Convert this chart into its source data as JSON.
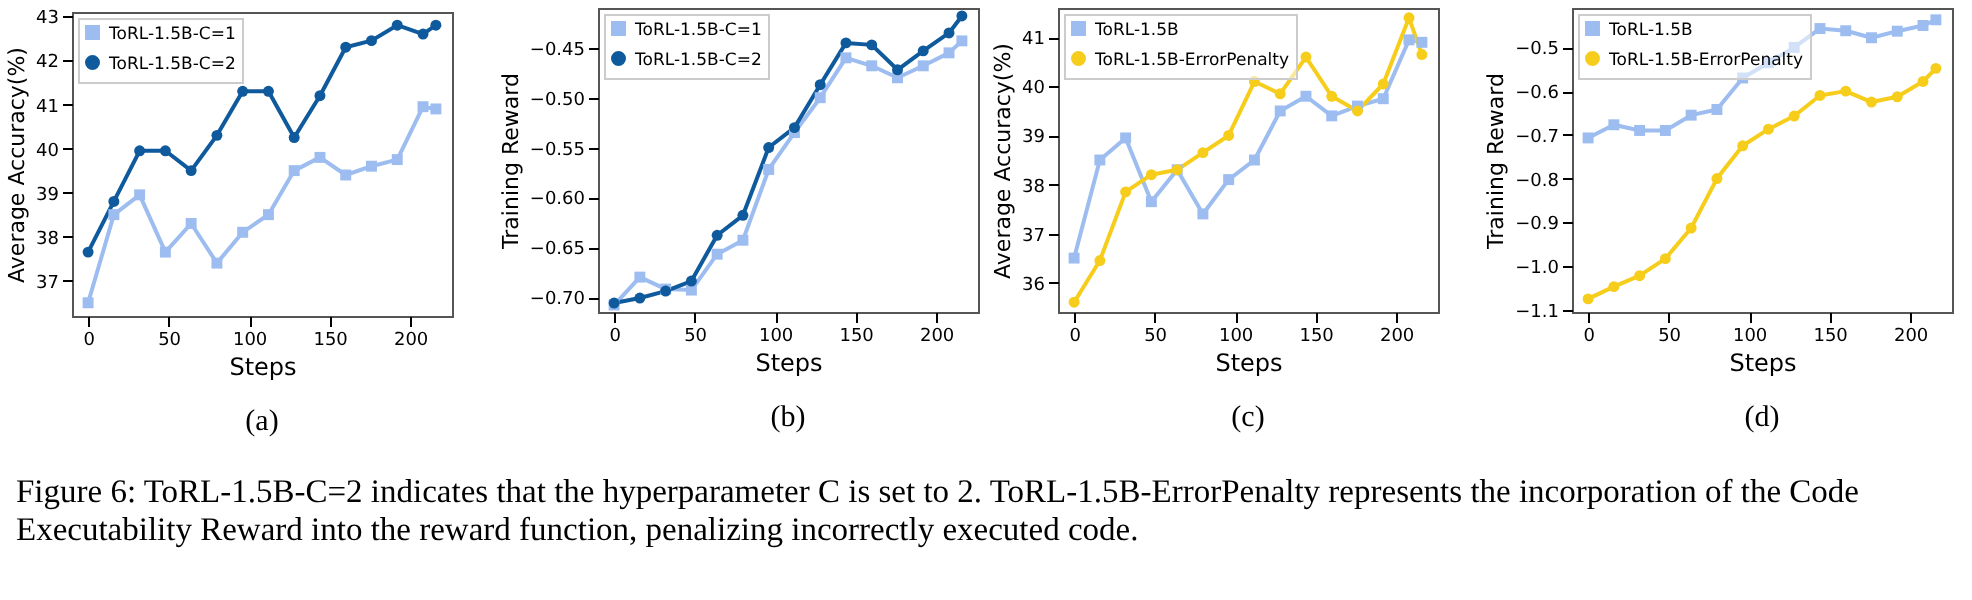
{
  "chart_data": [
    {
      "type": "line",
      "xlabel": "Steps",
      "ylabel": "Average Accuracy(%)",
      "annotations": [
        "(a)",
        "Figure 6: ToRL-1.5B-C=2 indicates that the hyperparameter C is set to 2. ToRL-1.5B-ErrorPenalty represents the incorporation of the Code Executability Reward into the reward function, penalizing incorrectly executed code."
      ],
      "x": [
        0,
        16,
        32,
        48,
        64,
        80,
        96,
        112,
        128,
        144,
        160,
        176,
        192,
        208,
        216
      ],
      "xlim": [
        -10,
        226
      ],
      "xticks": [
        0,
        50,
        100,
        150,
        200
      ],
      "ylim": [
        36.2,
        43.1
      ],
      "yticks": [
        37,
        38,
        39,
        40,
        41,
        42,
        43
      ],
      "grid": false,
      "legend": "top left",
      "line_style": "solid",
      "series": [
        {
          "name": "ToRL-1.5B-C=1",
          "color": "#9dbdf0",
          "marker": "square",
          "values": [
            36.5,
            38.5,
            38.95,
            37.65,
            38.3,
            37.4,
            38.1,
            38.5,
            39.5,
            39.8,
            39.4,
            39.6,
            39.75,
            40.95,
            40.9
          ]
        },
        {
          "name": "ToRL-1.5B-C=2",
          "color": "#0f5a9c",
          "marker": "circle",
          "values": [
            37.65,
            38.8,
            39.95,
            39.95,
            39.5,
            40.3,
            41.3,
            41.3,
            40.25,
            41.2,
            42.3,
            42.45,
            42.8,
            42.6,
            42.8
          ]
        }
      ]
    },
    {
      "type": "line",
      "xlabel": "Steps",
      "ylabel": "Training Reward",
      "annotations": [
        "(b)"
      ],
      "x": [
        0,
        16,
        32,
        48,
        64,
        80,
        96,
        112,
        128,
        144,
        160,
        176,
        192,
        208,
        216
      ],
      "xlim": [
        -10,
        226
      ],
      "xticks": [
        0,
        50,
        100,
        150,
        200
      ],
      "ylim": [
        -0.715,
        -0.41
      ],
      "yticks": [
        {
          "value": -0.7,
          "label": "−0.70"
        },
        {
          "value": -0.65,
          "label": "−0.65"
        },
        {
          "value": -0.6,
          "label": "−0.60"
        },
        {
          "value": -0.55,
          "label": "−0.55"
        },
        {
          "value": -0.5,
          "label": "−0.50"
        },
        {
          "value": -0.45,
          "label": "−0.45"
        }
      ],
      "grid": false,
      "legend": "top left",
      "line_style": "solid",
      "series": [
        {
          "name": "ToRL-1.5B-C=1",
          "color": "#9dbdf0",
          "marker": "square",
          "values": [
            -0.708,
            -0.68,
            -0.692,
            -0.693,
            -0.657,
            -0.643,
            -0.572,
            -0.535,
            -0.5,
            -0.46,
            -0.468,
            -0.48,
            -0.468,
            -0.455,
            -0.443
          ]
        },
        {
          "name": "ToRL-1.5B-C=2",
          "color": "#0f5a9c",
          "marker": "circle",
          "values": [
            -0.706,
            -0.701,
            -0.694,
            -0.684,
            -0.638,
            -0.618,
            -0.55,
            -0.53,
            -0.487,
            -0.445,
            -0.447,
            -0.472,
            -0.453,
            -0.435,
            -0.418
          ]
        }
      ]
    },
    {
      "type": "line",
      "xlabel": "Steps",
      "ylabel": "Average Accuracy(%)",
      "annotations": [
        "(c)"
      ],
      "x": [
        0,
        16,
        32,
        48,
        64,
        80,
        96,
        112,
        128,
        144,
        160,
        176,
        192,
        208,
        216
      ],
      "xlim": [
        -10,
        226
      ],
      "xticks": [
        0,
        50,
        100,
        150,
        200
      ],
      "ylim": [
        35.4,
        41.6
      ],
      "yticks": [
        36,
        37,
        38,
        39,
        40,
        41
      ],
      "grid": false,
      "legend": "top left",
      "line_style": "solid",
      "series": [
        {
          "name": "ToRL-1.5B",
          "color": "#9dbdf0",
          "marker": "square",
          "values": [
            36.5,
            38.5,
            38.95,
            37.65,
            38.3,
            37.4,
            38.1,
            38.5,
            39.5,
            39.8,
            39.4,
            39.6,
            39.75,
            40.95,
            40.9
          ]
        },
        {
          "name": "ToRL-1.5B-ErrorPenalty",
          "color": "#f7cd1c",
          "marker": "circle",
          "values": [
            35.6,
            36.45,
            37.85,
            38.2,
            38.3,
            38.65,
            39.0,
            40.1,
            39.85,
            40.6,
            39.8,
            39.5,
            40.05,
            41.4,
            40.65
          ]
        }
      ]
    },
    {
      "type": "line",
      "xlabel": "Steps",
      "ylabel": "Training Reward",
      "annotations": [
        "(d)"
      ],
      "x": [
        0,
        16,
        32,
        48,
        64,
        80,
        96,
        112,
        128,
        144,
        160,
        176,
        192,
        208,
        216
      ],
      "xlim": [
        -10,
        226
      ],
      "xticks": [
        0,
        50,
        100,
        150,
        200
      ],
      "ylim": [
        -1.105,
        -0.41
      ],
      "yticks": [
        -1.1,
        {
          "value": -1.0,
          "label": "−1.0"
        },
        -0.9,
        -0.8,
        -0.7,
        -0.6,
        -0.5
      ],
      "grid": false,
      "legend": "top left",
      "line_style": "solid",
      "series": [
        {
          "name": "ToRL-1.5B",
          "color": "#9dbdf0",
          "marker": "square",
          "values": [
            -0.707,
            -0.677,
            -0.69,
            -0.69,
            -0.655,
            -0.642,
            -0.57,
            -0.535,
            -0.5,
            -0.457,
            -0.462,
            -0.478,
            -0.463,
            -0.45,
            -0.437
          ]
        },
        {
          "name": "ToRL-1.5B-ErrorPenalty",
          "color": "#f7cd1c",
          "marker": "circle",
          "values": [
            -1.075,
            -1.047,
            -1.022,
            -0.983,
            -0.913,
            -0.8,
            -0.725,
            -0.687,
            -0.657,
            -0.61,
            -0.6,
            -0.625,
            -0.613,
            -0.578,
            -0.548
          ]
        }
      ]
    }
  ]
}
